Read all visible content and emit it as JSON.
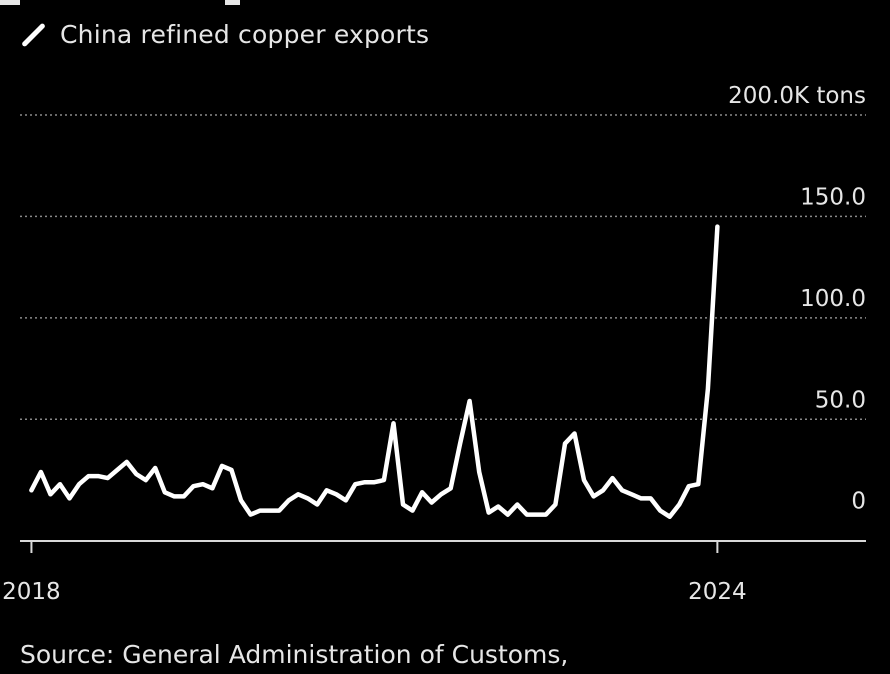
{
  "legend": {
    "label": "China refined copper exports",
    "color": "#ffffff"
  },
  "source": "Source: General Administration of Customs,",
  "chart_data": {
    "type": "line",
    "series": [
      {
        "name": "China refined copper exports",
        "color": "#ffffff",
        "points": [
          [
            2018.0,
            15
          ],
          [
            2018.083,
            24
          ],
          [
            2018.167,
            13
          ],
          [
            2018.25,
            18
          ],
          [
            2018.333,
            11
          ],
          [
            2018.417,
            18
          ],
          [
            2018.5,
            22
          ],
          [
            2018.583,
            22
          ],
          [
            2018.667,
            21
          ],
          [
            2018.75,
            25
          ],
          [
            2018.833,
            29
          ],
          [
            2018.917,
            23
          ],
          [
            2019.0,
            20
          ],
          [
            2019.083,
            26
          ],
          [
            2019.167,
            14
          ],
          [
            2019.25,
            12
          ],
          [
            2019.333,
            12
          ],
          [
            2019.417,
            17
          ],
          [
            2019.5,
            18
          ],
          [
            2019.583,
            16
          ],
          [
            2019.667,
            27
          ],
          [
            2019.75,
            25
          ],
          [
            2019.833,
            10
          ],
          [
            2019.917,
            3
          ],
          [
            2020.0,
            5
          ],
          [
            2020.083,
            5
          ],
          [
            2020.167,
            5
          ],
          [
            2020.25,
            10
          ],
          [
            2020.333,
            13
          ],
          [
            2020.417,
            11
          ],
          [
            2020.5,
            8
          ],
          [
            2020.583,
            15
          ],
          [
            2020.667,
            13
          ],
          [
            2020.75,
            10
          ],
          [
            2020.833,
            18
          ],
          [
            2020.917,
            19
          ],
          [
            2021.0,
            19
          ],
          [
            2021.083,
            20
          ],
          [
            2021.167,
            48
          ],
          [
            2021.25,
            8
          ],
          [
            2021.333,
            5
          ],
          [
            2021.417,
            14
          ],
          [
            2021.5,
            9
          ],
          [
            2021.583,
            13
          ],
          [
            2021.667,
            16
          ],
          [
            2021.75,
            38
          ],
          [
            2021.833,
            59
          ],
          [
            2021.917,
            24
          ],
          [
            2022.0,
            4
          ],
          [
            2022.083,
            7
          ],
          [
            2022.167,
            3
          ],
          [
            2022.25,
            8
          ],
          [
            2022.333,
            3
          ],
          [
            2022.417,
            3
          ],
          [
            2022.5,
            3
          ],
          [
            2022.583,
            8
          ],
          [
            2022.667,
            38
          ],
          [
            2022.75,
            43
          ],
          [
            2022.833,
            20
          ],
          [
            2022.917,
            12
          ],
          [
            2023.0,
            15
          ],
          [
            2023.083,
            21
          ],
          [
            2023.167,
            15
          ],
          [
            2023.25,
            13
          ],
          [
            2023.333,
            11
          ],
          [
            2023.417,
            11
          ],
          [
            2023.5,
            5
          ],
          [
            2023.583,
            2
          ],
          [
            2023.667,
            8
          ],
          [
            2023.75,
            17
          ],
          [
            2023.833,
            18
          ],
          [
            2023.917,
            65
          ],
          [
            2024.0,
            145
          ]
        ]
      }
    ],
    "xlim": [
      2017.9,
      2025.3
    ],
    "ylim": [
      -10,
      200
    ],
    "x_ticks": [
      {
        "value": 2018,
        "label": "2018"
      },
      {
        "value": 2024,
        "label": "2024"
      }
    ],
    "y_ticks": [
      {
        "value": 0,
        "label": "0"
      },
      {
        "value": 50,
        "label": "50.0"
      },
      {
        "value": 100,
        "label": "100.0"
      },
      {
        "value": 150,
        "label": "150.0"
      },
      {
        "value": 200,
        "label": "200.0K tons"
      }
    ],
    "grid": true,
    "grid_color": "#8a8a8a",
    "axis_color": "#d9d9d9",
    "text_color": "#e6e6e6",
    "background": "#000000",
    "legend_position": "top-left"
  }
}
